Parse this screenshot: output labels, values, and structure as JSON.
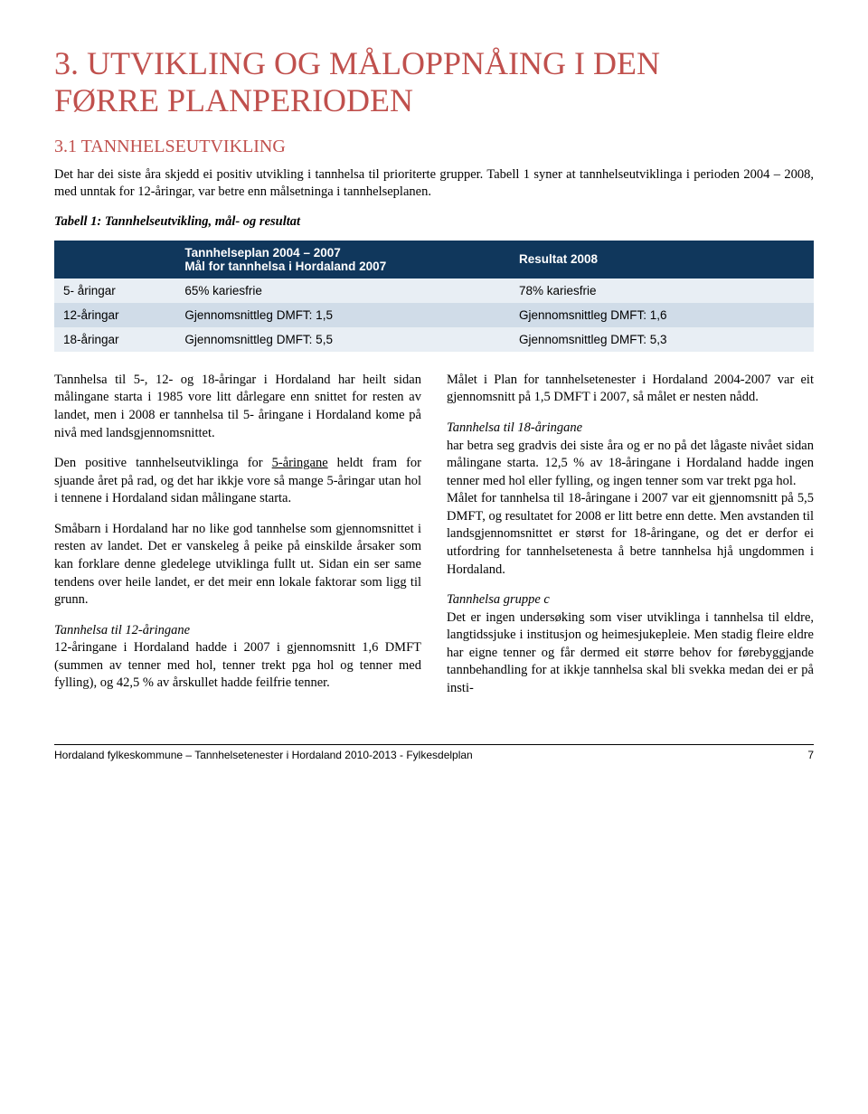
{
  "colors": {
    "accent": "#c0504d",
    "table_header_bg": "#10375c",
    "table_header_fg": "#ffffff",
    "row_odd_bg": "#e8eef4",
    "row_even_bg": "#d0dce8",
    "body_text": "#000000",
    "page_bg": "#ffffff",
    "footer_rule": "#000000"
  },
  "typography": {
    "body_family": "Georgia / Times New Roman, serif",
    "table_family": "Arial, sans-serif",
    "heading_fontsize_pt": 27,
    "subheading_fontsize_pt": 15,
    "body_fontsize_pt": 11,
    "table_fontsize_pt": 10,
    "footer_fontsize_pt": 9
  },
  "heading": {
    "line1": "3. UTVIKLING OG MÅLOPPNÅING I DEN",
    "line2": "FØRRE PLANPERIODEN"
  },
  "subheading": "3.1 TANNHELSEUTVIKLING",
  "intro": "Det har dei siste åra skjedd ei positiv utvikling i tannhelsa til prioriterte grupper. Tabell 1 syner at tannhelse­utviklinga i perioden 2004 – 2008, med unntak for 12-åringar, var betre enn målsetninga i tannhelseplanen.",
  "table": {
    "caption": "Tabell 1: Tannhelseutvikling, mål- og resultat",
    "header": {
      "col_left": "",
      "col_mid_line1": "Tannhelseplan 2004 – 2007",
      "col_mid_line2": "Mål for tannhelsa i Hordaland 2007",
      "col_right": "Resultat 2008"
    },
    "rows": [
      {
        "group": "5- åringar",
        "goal": "65% kariesfrie",
        "result": "78% kariesfrie"
      },
      {
        "group": "12-åringar",
        "goal": "Gjennomsnittleg DMFT: 1,5",
        "result": "Gjennomsnittleg DMFT: 1,6"
      },
      {
        "group": "18-åringar",
        "goal": "Gjennomsnittleg DMFT: 5,5",
        "result": "Gjennomsnittleg DMFT: 5,3"
      }
    ],
    "layout": {
      "col_left_pct": 16,
      "col_mid_pct": 44,
      "col_right_pct": 40
    }
  },
  "body": {
    "p1": "Tannhelsa til 5-, 12- og 18-åringar i Hordaland har heilt sidan målingane starta i 1985 vore litt dårlega­re enn snittet for resten av landet, men i 2008 er tannhelsa til 5- åringane i Hordaland kome på nivå med landsgjennomsnittet.",
    "p2_pre": "Den positive tannhelseutviklinga for ",
    "p2_u": "5-åringane",
    "p2_post": " heldt fram for sjuande året på rad, og det har ikkje vore så mange 5-åringar utan hol i tennene i Horda­land sidan målingane starta.",
    "p3": "Småbarn i Hordaland har no like god tannhelse som gjennomsnittet i resten av landet. Det er vans­keleg å peike på einskilde årsaker som kan forklare denne gledelege utviklinga fullt ut. Sidan ein ser same tendens over heile landet, er det meir enn lokale faktorar som ligg til grunn.",
    "p4_head": "Tannhelsa til 12-åringane",
    "p4_body": "12-åringane i Hordaland hadde i 2007 i gjennom­snitt 1,6 DMFT (summen av tenner med hol, tenner trekt pga hol og tenner med fylling), og 42,5 % av årskullet hadde feilfrie tenner.",
    "p5": "Målet i Plan for tannhelsetenester i Hordaland 2004-2007 var eit gjennomsnitt på 1,5 DMFT i 2007, så målet er nesten nådd.",
    "p6_head": "Tannhelsa til 18-åringane",
    "p6_body_a": "har betra seg gradvis dei siste åra og er no på det lågaste nivået sidan målingane starta. 12,5 % av 18-åringane i Hordaland hadde ingen tenner med hol eller fylling, og ingen tenner som var trekt pga hol.",
    "p6_body_b": "Målet for tannhelsa til 18-åringane i 2007 var eit gjennomsnitt på 5,5 DMFT, og resultatet for 2008 er litt betre enn dette. Men avstanden til landsgjen­nomsnittet er størst for 18-åringane, og det er der­for ei utfordring for tannhelsetenesta å betre tann­helsa hjå ungdommen i Hordaland.",
    "p7_head": "Tannhelsa gruppe c",
    "p7_body": "Det er ingen undersøking som viser utviklinga i tannhelsa til eldre, langtidssjuke i institusjon og heimesjukepleie. Men stadig fleire eldre har eigne tenner og får dermed eit større behov for førebyggjande tannbehandling for at ikkje tannhelsa skal bli svekka medan dei er på insti-"
  },
  "footer": {
    "text": "Hordaland fylkeskommune – Tannhelsetenester i Hordaland 2010-2013 - Fylkesdelplan",
    "page": "7"
  }
}
